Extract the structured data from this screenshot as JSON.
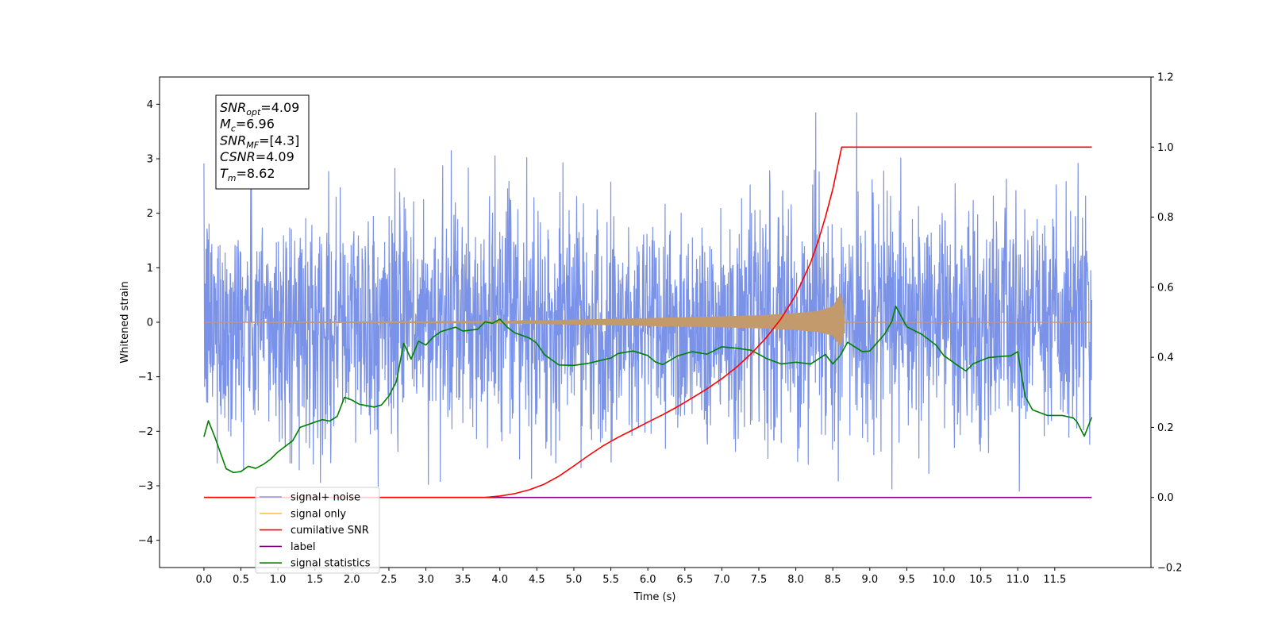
{
  "chart_data": {
    "type": "line",
    "xlabel": "Time (s)",
    "ylabel": "Whitened strain",
    "xlim": [
      -0.6,
      12.8
    ],
    "ylim": [
      -4.5,
      4.5
    ],
    "y2lim": [
      -0.2,
      1.2
    ],
    "x_ticks": [
      0.0,
      0.5,
      1.0,
      1.5,
      2.0,
      2.5,
      3.0,
      3.5,
      4.0,
      4.5,
      5.0,
      5.5,
      6.0,
      6.5,
      7.0,
      7.5,
      8.0,
      8.5,
      9.0,
      9.5,
      10.0,
      10.5,
      11.0,
      11.5
    ],
    "x_tick_labels": [
      "0.0",
      "0.5",
      "1.0",
      "1.5",
      "2.0",
      "2.5",
      "3.0",
      "3.5",
      "4.0",
      "4.5",
      "5.0",
      "5.5",
      "6.0",
      "6.5",
      "7.0",
      "7.5",
      "8.0",
      "8.5",
      "9.0",
      "9.5",
      "10.0",
      "10.5",
      "11.0",
      "11.5"
    ],
    "y_ticks": [
      -4,
      -3,
      -2,
      -1,
      0,
      1,
      2,
      3,
      4
    ],
    "y_tick_labels": [
      "−4",
      "−3",
      "−2",
      "−1",
      "0",
      "1",
      "2",
      "3",
      "4"
    ],
    "y2_ticks": [
      -0.2,
      0.0,
      0.2,
      0.4,
      0.6,
      0.8,
      1.0,
      1.2
    ],
    "y2_tick_labels": [
      "−0.2",
      "0.0",
      "0.2",
      "0.4",
      "0.6",
      "0.8",
      "1.0",
      "1.2"
    ],
    "grid": false,
    "legend_position": "bottom-left",
    "series": [
      {
        "name": "signal+ noise",
        "axis": "left",
        "color": "#6b86e6",
        "description_note": "whitened noise with signal, dense fluctuation mostly within about -3 to 3, time 0 to 12 s",
        "x_range": [
          0.0,
          12.0
        ],
        "approx_range": [
          -4.05,
          3.85
        ]
      },
      {
        "name": "signal only",
        "axis": "left",
        "color": "#f5b041",
        "display_color": "#c29a6b",
        "x_range": [
          0.0,
          12.0
        ],
        "merger_time": 8.62,
        "envelope_x": [
          0.0,
          2.0,
          4.0,
          5.0,
          6.0,
          7.0,
          7.5,
          8.0,
          8.3,
          8.5,
          8.6,
          8.62,
          8.65,
          12.0
        ],
        "envelope_y": [
          0.0,
          0.005,
          0.015,
          0.04,
          0.07,
          0.1,
          0.12,
          0.16,
          0.2,
          0.28,
          0.5,
          0.58,
          0.0,
          0.0
        ]
      },
      {
        "name": "cumilative SNR",
        "axis": "right",
        "color": "#ff0000",
        "x": [
          0.0,
          3.0,
          3.8,
          4.0,
          4.2,
          4.4,
          4.6,
          4.8,
          5.0,
          5.2,
          5.4,
          5.6,
          5.8,
          6.0,
          6.2,
          6.4,
          6.6,
          6.8,
          7.0,
          7.2,
          7.4,
          7.6,
          7.8,
          8.0,
          8.2,
          8.3,
          8.4,
          8.5,
          8.55,
          8.6,
          8.62,
          12.0
        ],
        "y": [
          0.0,
          0.0,
          0.0,
          0.004,
          0.011,
          0.022,
          0.038,
          0.061,
          0.09,
          0.12,
          0.148,
          0.172,
          0.193,
          0.215,
          0.236,
          0.259,
          0.284,
          0.31,
          0.339,
          0.372,
          0.411,
          0.456,
          0.51,
          0.578,
          0.67,
          0.73,
          0.8,
          0.88,
          0.93,
          0.98,
          1.0,
          1.0
        ]
      },
      {
        "name": "label",
        "axis": "right",
        "color": "#800080",
        "x": [
          0.0,
          12.0
        ],
        "y": [
          0.0,
          0.0
        ]
      },
      {
        "name": "signal statistics",
        "axis": "right",
        "color": "#008000",
        "x": [
          0.0,
          0.06,
          0.15,
          0.3,
          0.4,
          0.5,
          0.6,
          0.7,
          0.8,
          0.9,
          1.0,
          1.2,
          1.3,
          1.5,
          1.6,
          1.7,
          1.8,
          1.9,
          2.0,
          2.1,
          2.2,
          2.3,
          2.4,
          2.5,
          2.6,
          2.7,
          2.8,
          2.9,
          3.0,
          3.1,
          3.2,
          3.4,
          3.5,
          3.7,
          3.8,
          3.9,
          4.0,
          4.1,
          4.2,
          4.4,
          4.5,
          4.6,
          4.8,
          5.0,
          5.2,
          5.4,
          5.5,
          5.6,
          5.8,
          6.0,
          6.1,
          6.2,
          6.4,
          6.6,
          6.8,
          7.0,
          7.2,
          7.4,
          7.6,
          7.8,
          8.0,
          8.2,
          8.4,
          8.5,
          8.6,
          8.7,
          8.9,
          9.0,
          9.2,
          9.3,
          9.35,
          9.5,
          9.7,
          9.9,
          10.0,
          10.2,
          10.3,
          10.4,
          10.6,
          10.8,
          10.9,
          11.0,
          11.1,
          11.2,
          11.4,
          11.6,
          11.75,
          11.8,
          11.9,
          12.0
        ],
        "y": [
          0.173,
          0.219,
          0.171,
          0.082,
          0.071,
          0.074,
          0.089,
          0.083,
          0.094,
          0.109,
          0.13,
          0.162,
          0.2,
          0.215,
          0.222,
          0.218,
          0.231,
          0.286,
          0.278,
          0.266,
          0.262,
          0.258,
          0.264,
          0.29,
          0.33,
          0.44,
          0.395,
          0.446,
          0.435,
          0.458,
          0.473,
          0.486,
          0.475,
          0.48,
          0.501,
          0.497,
          0.509,
          0.486,
          0.47,
          0.455,
          0.44,
          0.408,
          0.378,
          0.377,
          0.383,
          0.393,
          0.398,
          0.411,
          0.418,
          0.405,
          0.387,
          0.379,
          0.404,
          0.416,
          0.409,
          0.43,
          0.426,
          0.42,
          0.397,
          0.381,
          0.386,
          0.381,
          0.408,
          0.381,
          0.405,
          0.443,
          0.416,
          0.418,
          0.466,
          0.503,
          0.546,
          0.487,
          0.466,
          0.434,
          0.405,
          0.375,
          0.361,
          0.382,
          0.399,
          0.403,
          0.404,
          0.416,
          0.288,
          0.25,
          0.234,
          0.234,
          0.227,
          0.216,
          0.175,
          0.229
        ]
      }
    ],
    "annotation": {
      "lines": [
        {
          "var": "SNR",
          "sub": "opt",
          "value": "=4.09"
        },
        {
          "var": "M",
          "sub": "c",
          "value": "=6.96"
        },
        {
          "var": "SNR",
          "sub": "MF",
          "value": "=[4.3]"
        },
        {
          "var": "CSNR",
          "sub": "",
          "value": "=4.09"
        },
        {
          "var": "T",
          "sub": "m",
          "value": "=8.62"
        }
      ]
    },
    "legend_entries": [
      {
        "label": "signal+ noise",
        "color": "#6b86e6",
        "alpha": 0.8
      },
      {
        "label": "signal only",
        "color": "#f5b041",
        "alpha": 0.8
      },
      {
        "label": "cumilative SNR",
        "color": "#ff0000",
        "alpha": 1
      },
      {
        "label": "label",
        "color": "#800080",
        "alpha": 1
      },
      {
        "label": "signal statistics",
        "color": "#008000",
        "alpha": 1
      }
    ]
  }
}
